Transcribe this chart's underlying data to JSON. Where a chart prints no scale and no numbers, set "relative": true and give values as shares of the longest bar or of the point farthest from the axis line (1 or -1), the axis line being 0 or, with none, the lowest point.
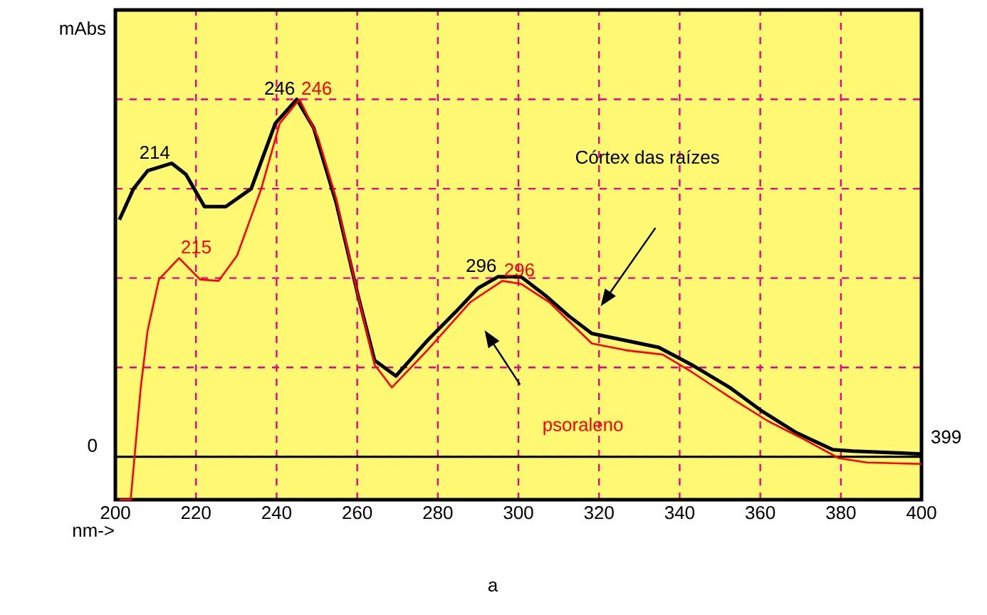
{
  "chart_data": {
    "type": "line",
    "relative": true,
    "xlabel": "nm->",
    "ylabel": "mAbs",
    "xlim": [
      200,
      400
    ],
    "xticks": [
      200,
      220,
      240,
      260,
      280,
      300,
      320,
      340,
      360,
      380,
      400
    ],
    "grid": true,
    "marker": "none",
    "line_style": "solid",
    "series": [
      {
        "name": "Córtex das raízes",
        "color": "#000000",
        "x": [
          201,
          204.5,
          208,
          214,
          217.5,
          222.1,
          227.4,
          233.7,
          239.7,
          245,
          249.2,
          254.8,
          260.1,
          264.3,
          269.6,
          277.4,
          284.4,
          290,
          295,
          300.6,
          306.6,
          312.6,
          318.2,
          326.7,
          334.8,
          342.9,
          352.4,
          360.5,
          369,
          378,
          383,
          400
        ],
        "values": [
          0.663,
          0.75,
          0.8,
          0.821,
          0.79,
          0.7,
          0.7,
          0.75,
          0.933,
          1.0,
          0.92,
          0.71,
          0.456,
          0.27,
          0.226,
          0.325,
          0.405,
          0.472,
          0.504,
          0.504,
          0.452,
          0.393,
          0.345,
          0.325,
          0.306,
          0.258,
          0.194,
          0.127,
          0.067,
          0.02,
          0.016,
          0.008
        ]
      },
      {
        "name": "psoraleno",
        "color": "#ff0000",
        "x": [
          201,
          203.8,
          206.3,
          208,
          210.8,
          215.8,
          221,
          225.6,
          230.2,
          236.2,
          240.8,
          245.7,
          250.3,
          254.8,
          260.1,
          264.3,
          268.6,
          277.4,
          288,
          296,
          300.6,
          307.7,
          318.2,
          326.7,
          335.8,
          342.9,
          352.4,
          361.9,
          371,
          379.5,
          386.5,
          400
        ],
        "values": [
          -0.12,
          -0.12,
          0.194,
          0.353,
          0.496,
          0.556,
          0.496,
          0.492,
          0.563,
          0.75,
          0.933,
          1.0,
          0.893,
          0.722,
          0.456,
          0.258,
          0.194,
          0.298,
          0.432,
          0.492,
          0.484,
          0.432,
          0.317,
          0.298,
          0.286,
          0.238,
          0.167,
          0.1,
          0.048,
          -0.004,
          -0.016,
          -0.02
        ]
      }
    ],
    "annotations": [
      {
        "text": "214",
        "x": 214,
        "y": 0.821
      },
      {
        "text": "215",
        "x": 215.8,
        "y": 0.556
      },
      {
        "text": "246",
        "x": 245,
        "y": 1.0
      },
      {
        "text": "246",
        "x": 245.7,
        "y": 1.0
      },
      {
        "text": "296",
        "x": 295,
        "y": 0.504
      },
      {
        "text": "296",
        "x": 296,
        "y": 0.492
      },
      "0",
      "399",
      "a"
    ]
  }
}
